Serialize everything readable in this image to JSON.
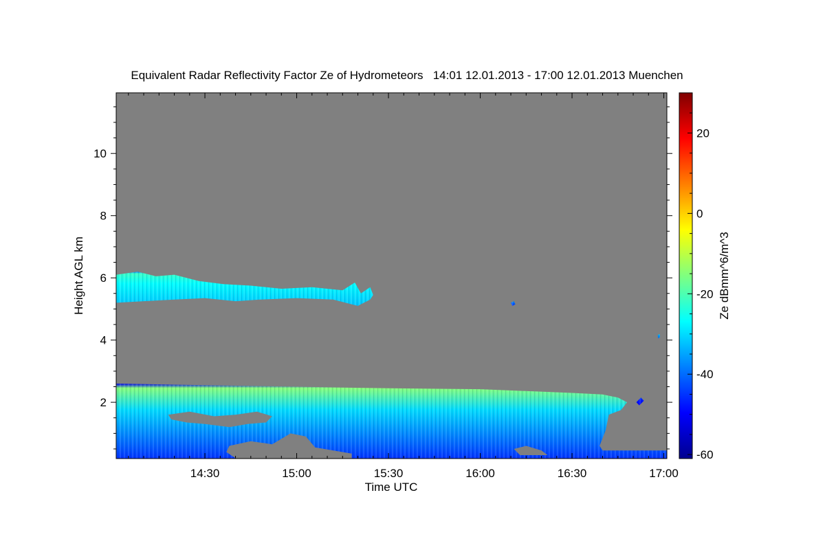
{
  "chart_data": {
    "type": "heatmap",
    "title": "Equivalent Radar Reflectivity Factor Ze of Hydrometeors   14:01 12.01.2013 - 17:00 12.01.2013 Muenchen",
    "xlabel": "Time UTC",
    "ylabel": "Height AGL km",
    "colorbar_label": "Ze dBmm^6/m^3",
    "x_unit": "minutes after 14:00 UTC",
    "xlim": [
      1,
      181
    ],
    "ylim": [
      0.19,
      11.95
    ],
    "clim": [
      -61,
      30
    ],
    "x_ticks": [
      {
        "value": 30,
        "label": "14:30"
      },
      {
        "value": 60,
        "label": "15:00"
      },
      {
        "value": 90,
        "label": "15:30"
      },
      {
        "value": 120,
        "label": "16:00"
      },
      {
        "value": 150,
        "label": "16:30"
      },
      {
        "value": 180,
        "label": "17:00"
      }
    ],
    "y_ticks": [
      {
        "value": 2,
        "label": "2"
      },
      {
        "value": 4,
        "label": "4"
      },
      {
        "value": 6,
        "label": "6"
      },
      {
        "value": 8,
        "label": "8"
      },
      {
        "value": 10,
        "label": "10"
      }
    ],
    "colorbar_ticks": [
      {
        "value": -60,
        "label": "-60"
      },
      {
        "value": -40,
        "label": "-40"
      },
      {
        "value": -20,
        "label": "-20"
      },
      {
        "value": 0,
        "label": "0"
      },
      {
        "value": 20,
        "label": "20"
      }
    ],
    "background_color": "#808080",
    "echo_regions": [
      {
        "name": "upper-cloud-layer",
        "ze_top": -22,
        "ze_bottom": -32,
        "outline": [
          [
            1,
            6.1
          ],
          [
            8,
            6.2
          ],
          [
            14,
            6.05
          ],
          [
            20,
            6.1
          ],
          [
            28,
            5.9
          ],
          [
            36,
            5.8
          ],
          [
            45,
            5.75
          ],
          [
            55,
            5.65
          ],
          [
            65,
            5.7
          ],
          [
            75,
            5.6
          ],
          [
            79,
            5.85
          ],
          [
            81,
            5.5
          ],
          [
            84,
            5.7
          ],
          [
            85,
            5.45
          ],
          [
            84,
            5.3
          ],
          [
            80,
            5.1
          ],
          [
            72,
            5.3
          ],
          [
            60,
            5.35
          ],
          [
            48,
            5.3
          ],
          [
            40,
            5.25
          ],
          [
            30,
            5.35
          ],
          [
            20,
            5.3
          ],
          [
            10,
            5.25
          ],
          [
            1,
            5.2
          ]
        ]
      },
      {
        "name": "lower-cloud-layer",
        "ze_top": -15,
        "ze_bottom": -45,
        "outline": [
          [
            1,
            2.6
          ],
          [
            30,
            2.55
          ],
          [
            60,
            2.5
          ],
          [
            90,
            2.45
          ],
          [
            120,
            2.42
          ],
          [
            150,
            2.3
          ],
          [
            160,
            2.25
          ],
          [
            165,
            2.15
          ],
          [
            168,
            2.0
          ],
          [
            166,
            1.75
          ],
          [
            162,
            1.6
          ],
          [
            161,
            1.1
          ],
          [
            159,
            0.6
          ],
          [
            160,
            0.45
          ],
          [
            181,
            0.45
          ],
          [
            181,
            0.2
          ],
          [
            1,
            0.2
          ]
        ]
      },
      {
        "name": "isolated-echo",
        "ze_top": -35,
        "ze_bottom": -45,
        "outline": [
          [
            130,
            5.2
          ],
          [
            131,
            5.25
          ],
          [
            131.5,
            5.15
          ],
          [
            130.5,
            5.1
          ]
        ]
      },
      {
        "name": "isolated-echo",
        "ze_top": -30,
        "ze_bottom": -40,
        "outline": [
          [
            178,
            4.15
          ],
          [
            178.6,
            4.2
          ],
          [
            178.8,
            4.1
          ],
          [
            178.2,
            4.05
          ]
        ]
      },
      {
        "name": "isolated-echo",
        "ze_top": -45,
        "ze_bottom": -50,
        "outline": [
          [
            171,
            2.0
          ],
          [
            172.5,
            2.15
          ],
          [
            173.5,
            2.05
          ],
          [
            172,
            1.9
          ]
        ]
      }
    ],
    "no_echo_gaps": [
      {
        "outline": [
          [
            18,
            1.6
          ],
          [
            25,
            1.7
          ],
          [
            33,
            1.55
          ],
          [
            40,
            1.6
          ],
          [
            47,
            1.7
          ],
          [
            52,
            1.55
          ],
          [
            50,
            1.35
          ],
          [
            44,
            1.3
          ],
          [
            38,
            1.2
          ],
          [
            30,
            1.3
          ],
          [
            24,
            1.35
          ],
          [
            19,
            1.45
          ]
        ]
      },
      {
        "name": "gap",
        "outline": [
          [
            38,
            0.6
          ],
          [
            45,
            0.75
          ],
          [
            52,
            0.65
          ],
          [
            58,
            1.0
          ],
          [
            63,
            0.9
          ],
          [
            66,
            0.55
          ],
          [
            72,
            0.45
          ],
          [
            78,
            0.35
          ],
          [
            78,
            0.2
          ],
          [
            40,
            0.2
          ],
          [
            37,
            0.4
          ]
        ]
      },
      {
        "outline": [
          [
            131,
            0.5
          ],
          [
            135,
            0.6
          ],
          [
            140,
            0.45
          ],
          [
            142,
            0.3
          ],
          [
            133,
            0.3
          ]
        ]
      }
    ]
  }
}
